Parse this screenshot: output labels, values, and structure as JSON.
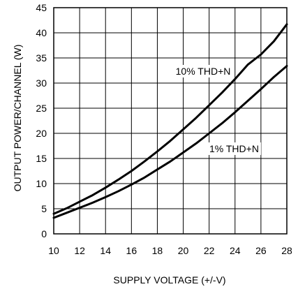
{
  "chart_data": {
    "type": "line",
    "xlabel": "SUPPLY VOLTAGE (+/-V)",
    "ylabel": "OUTPUT POWER/CHANNEL (W)",
    "xlim": [
      10,
      28
    ],
    "ylim": [
      0,
      45
    ],
    "x_ticks": [
      10,
      12,
      14,
      16,
      18,
      20,
      22,
      24,
      26,
      28
    ],
    "y_ticks": [
      0,
      5,
      10,
      15,
      20,
      25,
      30,
      35,
      40,
      45
    ],
    "grid": true,
    "line_color": "#000000",
    "grid_color": "#000000",
    "series": [
      {
        "name": "10% THD+N",
        "x": [
          10,
          11,
          12,
          13,
          14,
          15,
          16,
          17,
          18,
          19,
          20,
          21,
          22,
          23,
          24,
          25,
          26,
          27,
          28
        ],
        "y": [
          4.0,
          5.1,
          6.4,
          7.7,
          9.2,
          10.8,
          12.5,
          14.4,
          16.4,
          18.5,
          20.8,
          23.1,
          25.6,
          28.1,
          30.8,
          33.7,
          35.7,
          38.3,
          41.7
        ]
      },
      {
        "name": "1% THD+N",
        "x": [
          10,
          11,
          12,
          13,
          14,
          15,
          16,
          17,
          18,
          19,
          20,
          21,
          22,
          23,
          24,
          25,
          26,
          27,
          28
        ],
        "y": [
          3.2,
          4.2,
          5.2,
          6.2,
          7.3,
          8.5,
          9.8,
          11.2,
          12.8,
          14.4,
          16.2,
          18.0,
          20.0,
          22.0,
          24.2,
          26.5,
          28.8,
          31.2,
          33.4
        ]
      }
    ]
  }
}
